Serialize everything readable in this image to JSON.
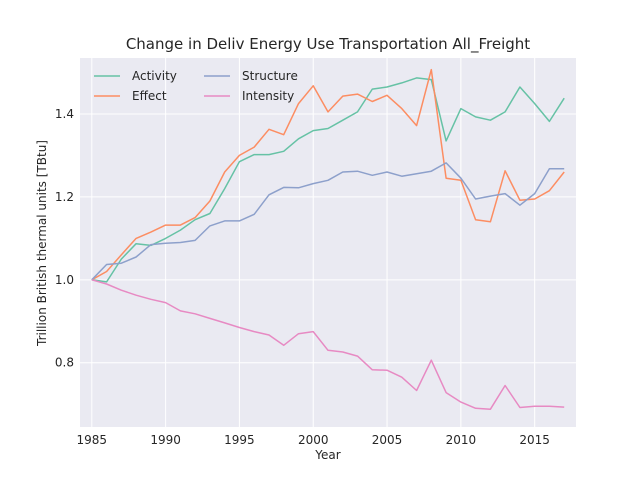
{
  "chart_data": {
    "type": "line",
    "title": "Change in Deliv Energy Use Transportation All_Freight",
    "xlabel": "Year",
    "ylabel": "Trillion British thermal units [TBtu]",
    "xlim": [
      1984.2,
      2017.8
    ],
    "ylim": [
      0.645,
      1.535
    ],
    "x_ticks": [
      1985,
      1990,
      1995,
      2000,
      2005,
      2010,
      2015
    ],
    "y_ticks": [
      0.8,
      1.0,
      1.2,
      1.4
    ],
    "grid": true,
    "legend_placement": "top-left",
    "x": [
      1985,
      1986,
      1987,
      1988,
      1989,
      1990,
      1991,
      1992,
      1993,
      1994,
      1995,
      1996,
      1997,
      1998,
      1999,
      2000,
      2001,
      2002,
      2003,
      2004,
      2005,
      2006,
      2007,
      2008,
      2009,
      2010,
      2011,
      2012,
      2013,
      2014,
      2015,
      2016,
      2017
    ],
    "series": [
      {
        "name": "Activity",
        "color": "#66c2a5",
        "values": [
          1.0,
          0.995,
          1.05,
          1.087,
          1.083,
          1.1,
          1.12,
          1.145,
          1.16,
          1.22,
          1.285,
          1.302,
          1.302,
          1.31,
          1.34,
          1.36,
          1.365,
          1.385,
          1.405,
          1.46,
          1.465,
          1.475,
          1.487,
          1.483,
          1.335,
          1.413,
          1.393,
          1.385,
          1.405,
          1.465,
          1.425,
          1.382,
          1.438
        ]
      },
      {
        "name": "Effect",
        "color": "#fc8d62",
        "values": [
          1.0,
          1.02,
          1.06,
          1.1,
          1.115,
          1.132,
          1.132,
          1.15,
          1.19,
          1.26,
          1.3,
          1.32,
          1.363,
          1.35,
          1.425,
          1.468,
          1.405,
          1.443,
          1.448,
          1.43,
          1.445,
          1.413,
          1.372,
          1.507,
          1.245,
          1.24,
          1.145,
          1.14,
          1.263,
          1.192,
          1.195,
          1.215,
          1.26
        ]
      },
      {
        "name": "Structure",
        "color": "#8da0cb",
        "values": [
          1.0,
          1.037,
          1.04,
          1.055,
          1.085,
          1.088,
          1.09,
          1.095,
          1.13,
          1.142,
          1.142,
          1.158,
          1.205,
          1.223,
          1.222,
          1.232,
          1.24,
          1.26,
          1.262,
          1.252,
          1.26,
          1.25,
          1.256,
          1.262,
          1.282,
          1.245,
          1.195,
          1.202,
          1.208,
          1.18,
          1.208,
          1.268,
          1.268
        ]
      },
      {
        "name": "Intensity",
        "color": "#e78ac3",
        "values": [
          1.0,
          0.99,
          0.975,
          0.963,
          0.953,
          0.945,
          0.925,
          0.918,
          0.907,
          0.896,
          0.885,
          0.875,
          0.867,
          0.842,
          0.87,
          0.875,
          0.83,
          0.826,
          0.816,
          0.783,
          0.782,
          0.765,
          0.733,
          0.806,
          0.728,
          0.705,
          0.69,
          0.688,
          0.745,
          0.692,
          0.695,
          0.695,
          0.693
        ]
      }
    ]
  },
  "colors": {
    "plot_background": "#eaeaf2",
    "grid": "#ffffff",
    "text": "#262626"
  }
}
